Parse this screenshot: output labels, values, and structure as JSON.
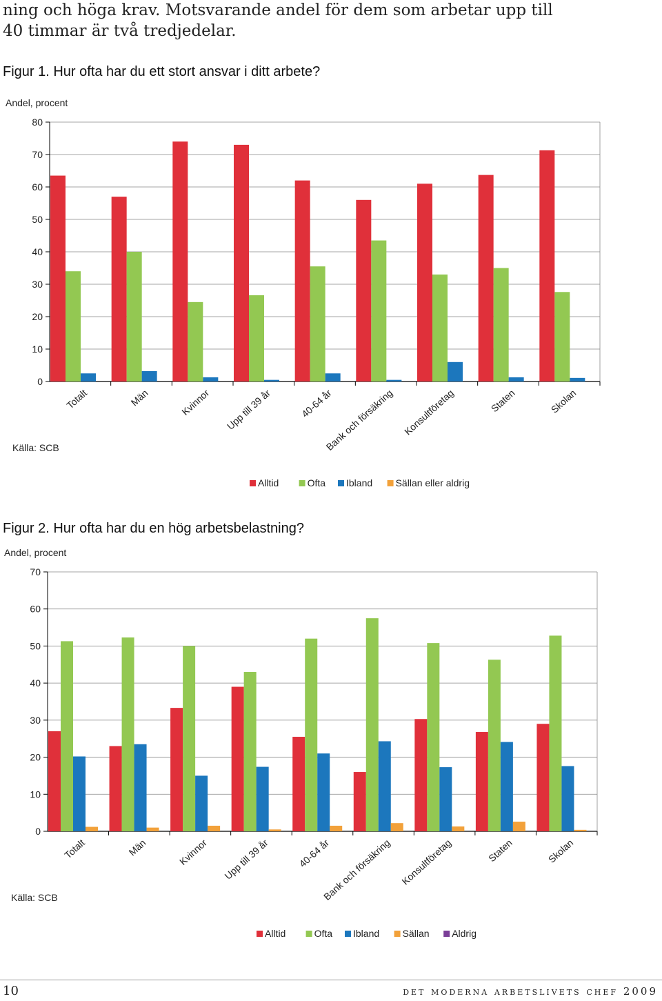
{
  "intro": {
    "line1": "ning och höga krav. Motsvarande andel för dem som arbetar upp till",
    "line2": "40 timmar är två tredjedelar."
  },
  "figures": [
    {
      "title": "Figur 1. Hur ofta har du ett stort ansvar i ditt arbete?",
      "source": "Källa: SCB",
      "chart_data": {
        "type": "bar",
        "ylabel": "Andel, procent",
        "ylim": [
          0,
          80
        ],
        "yticks": [
          0,
          10,
          20,
          30,
          40,
          50,
          60,
          70,
          80
        ],
        "grid": true,
        "legend_position": "bottom",
        "categories": [
          "Totalt",
          "Män",
          "Kvinnor",
          "Upp till 39 år",
          "40-64 år",
          "Bank och försäkring",
          "Konsultföretag",
          "Staten",
          "Skolan"
        ],
        "series": [
          {
            "name": "Alltid",
            "color": "#e0303a",
            "values": [
              63.5,
              57,
              74,
              73,
              62,
              56,
              61,
              63.7,
              71.3
            ]
          },
          {
            "name": "Ofta",
            "color": "#93c852",
            "values": [
              34,
              40,
              24.5,
              26.6,
              35.5,
              43.5,
              33,
              35,
              27.6
            ]
          },
          {
            "name": "Ibland",
            "color": "#1c77bd",
            "values": [
              2.5,
              3.2,
              1.3,
              0.5,
              2.5,
              0.5,
              6,
              1.3,
              1.1
            ]
          },
          {
            "name": "Sällan eller aldrig",
            "color": "#f2a13a",
            "values": [
              0,
              0,
              0,
              0,
              0,
              0,
              0,
              0,
              0
            ]
          }
        ]
      }
    },
    {
      "title": "Figur 2. Hur ofta har du en hög arbetsbelastning?",
      "source": "Källa: SCB",
      "chart_data": {
        "type": "bar",
        "ylabel": "Andel, procent",
        "ylim": [
          0,
          70
        ],
        "yticks": [
          0,
          10,
          20,
          30,
          40,
          50,
          60,
          70
        ],
        "grid": true,
        "legend_position": "bottom",
        "categories": [
          "Totalt",
          "Män",
          "Kvinnor",
          "Upp till 39 år",
          "40-64 år",
          "Bank och försäkring",
          "Konsultföretag",
          "Staten",
          "Skolan"
        ],
        "series": [
          {
            "name": "Alltid",
            "color": "#e0303a",
            "values": [
              27,
              23,
              33.3,
              39,
              25.5,
              16,
              30.3,
              26.8,
              29
            ]
          },
          {
            "name": "Ofta",
            "color": "#93c852",
            "values": [
              51.3,
              52.3,
              50,
              43,
              52,
              57.5,
              50.8,
              46.3,
              52.8
            ]
          },
          {
            "name": "Ibland",
            "color": "#1c77bd",
            "values": [
              20.2,
              23.5,
              15,
              17.4,
              21,
              24.3,
              17.3,
              24.1,
              17.6
            ]
          },
          {
            "name": "Sällan",
            "color": "#f2a13a",
            "values": [
              1.2,
              1.0,
              1.5,
              0.5,
              1.5,
              2.2,
              1.3,
              2.6,
              0.4
            ]
          },
          {
            "name": "Aldrig",
            "color": "#7b3f98",
            "values": [
              0,
              0,
              0,
              0,
              0,
              0,
              0,
              0,
              0
            ]
          }
        ]
      }
    }
  ],
  "footer": {
    "page_number": "10",
    "publication": "det moderna arbetslivets chef 2009"
  }
}
